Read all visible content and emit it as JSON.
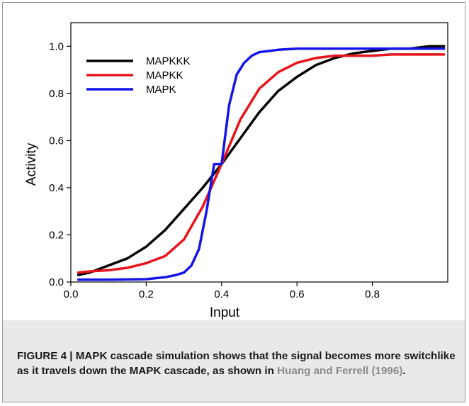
{
  "chart_data": {
    "type": "line",
    "title": "",
    "xlabel": "Input",
    "ylabel": "Activity",
    "xlim": [
      0.0,
      1.0
    ],
    "ylim": [
      0.0,
      1.1
    ],
    "x_ticks": [
      "0.0",
      "0.2",
      "0.4",
      "0.6",
      "0.8"
    ],
    "x_tick_values": [
      0.0,
      0.2,
      0.4,
      0.6,
      0.8
    ],
    "y_ticks": [
      "0.0",
      "0.2",
      "0.4",
      "0.6",
      "0.8",
      "1.0"
    ],
    "y_tick_values": [
      0.0,
      0.2,
      0.4,
      0.6,
      0.8,
      1.0
    ],
    "grid": false,
    "legend_position": "top-left",
    "series": [
      {
        "name": "MAPKKK",
        "color": "#000000",
        "x": [
          0.02,
          0.05,
          0.1,
          0.15,
          0.2,
          0.25,
          0.3,
          0.35,
          0.4,
          0.45,
          0.5,
          0.55,
          0.6,
          0.65,
          0.7,
          0.75,
          0.8,
          0.85,
          0.9,
          0.95,
          0.99
        ],
        "y": [
          0.03,
          0.04,
          0.07,
          0.1,
          0.15,
          0.22,
          0.31,
          0.4,
          0.5,
          0.61,
          0.72,
          0.81,
          0.87,
          0.92,
          0.95,
          0.97,
          0.98,
          0.99,
          0.99,
          1.0,
          1.0
        ]
      },
      {
        "name": "MAPKK",
        "color": "#e8141c",
        "x": [
          0.02,
          0.05,
          0.1,
          0.15,
          0.2,
          0.25,
          0.3,
          0.35,
          0.4,
          0.45,
          0.5,
          0.55,
          0.6,
          0.65,
          0.7,
          0.75,
          0.8,
          0.85,
          0.9,
          0.95,
          0.99
        ],
        "y": [
          0.04,
          0.045,
          0.05,
          0.06,
          0.08,
          0.11,
          0.18,
          0.32,
          0.5,
          0.69,
          0.82,
          0.89,
          0.93,
          0.95,
          0.96,
          0.96,
          0.96,
          0.965,
          0.965,
          0.965,
          0.965
        ]
      },
      {
        "name": "MAPK",
        "color": "#1414e8",
        "x": [
          0.02,
          0.1,
          0.2,
          0.25,
          0.28,
          0.3,
          0.32,
          0.34,
          0.36,
          0.38,
          0.4,
          0.42,
          0.44,
          0.46,
          0.48,
          0.5,
          0.55,
          0.6,
          0.7,
          0.8,
          0.9,
          0.99
        ],
        "y": [
          0.01,
          0.01,
          0.012,
          0.02,
          0.03,
          0.04,
          0.07,
          0.14,
          0.3,
          0.5,
          0.5,
          0.75,
          0.88,
          0.93,
          0.96,
          0.975,
          0.985,
          0.99,
          0.99,
          0.99,
          0.99,
          0.99
        ]
      }
    ]
  },
  "caption": {
    "label": "FIGURE 4 | MAPK cascade simulation shows that the signal becomes more switchlike as it travels down the MAPK cascade, as shown in ",
    "reference": "Huang and Ferrell (1996)",
    "end": "."
  }
}
